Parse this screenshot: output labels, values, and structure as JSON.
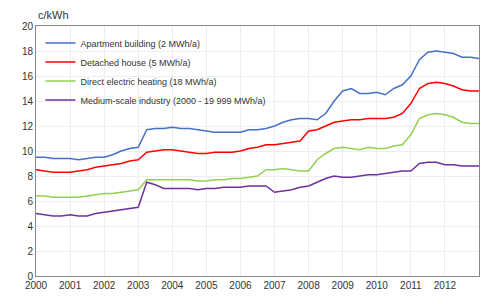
{
  "chart_data": {
    "type": "line",
    "ylabel": "c/kWh",
    "x": [
      2000.0,
      2000.25,
      2000.5,
      2000.75,
      2001.0,
      2001.25,
      2001.5,
      2001.75,
      2002.0,
      2002.25,
      2002.5,
      2002.75,
      2003.0,
      2003.25,
      2003.5,
      2003.75,
      2004.0,
      2004.25,
      2004.5,
      2004.75,
      2005.0,
      2005.25,
      2005.5,
      2005.75,
      2006.0,
      2006.25,
      2006.5,
      2006.75,
      2007.0,
      2007.25,
      2007.5,
      2007.75,
      2008.0,
      2008.25,
      2008.5,
      2008.75,
      2009.0,
      2009.25,
      2009.5,
      2009.75,
      2010.0,
      2010.25,
      2010.5,
      2010.75,
      2011.0,
      2011.25,
      2011.5,
      2011.75,
      2012.0,
      2012.25,
      2012.5,
      2012.75,
      2013.0
    ],
    "series": [
      {
        "name": "Apartment building (2 MWh/a)",
        "color": "#4472C4",
        "values": [
          9.5,
          9.5,
          9.4,
          9.4,
          9.4,
          9.3,
          9.4,
          9.5,
          9.5,
          9.7,
          10.0,
          10.2,
          10.3,
          11.7,
          11.8,
          11.8,
          11.9,
          11.8,
          11.8,
          11.7,
          11.6,
          11.5,
          11.5,
          11.5,
          11.5,
          11.7,
          11.7,
          11.8,
          12.0,
          12.3,
          12.5,
          12.6,
          12.6,
          12.5,
          13.0,
          14.0,
          14.8,
          15.0,
          14.6,
          14.6,
          14.7,
          14.5,
          15.0,
          15.3,
          16.0,
          17.3,
          17.9,
          18.0,
          17.9,
          17.8,
          17.5,
          17.5,
          17.4
        ]
      },
      {
        "name": "Detached house (5 MWh/a)",
        "color": "#FF0000",
        "values": [
          8.5,
          8.4,
          8.3,
          8.3,
          8.3,
          8.4,
          8.5,
          8.7,
          8.8,
          8.9,
          9.0,
          9.2,
          9.3,
          9.9,
          10.0,
          10.1,
          10.1,
          10.0,
          9.9,
          9.8,
          9.8,
          9.9,
          9.9,
          9.9,
          10.0,
          10.2,
          10.3,
          10.5,
          10.5,
          10.6,
          10.7,
          10.8,
          11.6,
          11.7,
          12.0,
          12.3,
          12.4,
          12.5,
          12.5,
          12.6,
          12.6,
          12.6,
          12.7,
          13.0,
          13.8,
          15.0,
          15.4,
          15.5,
          15.4,
          15.2,
          14.9,
          14.8,
          14.8
        ]
      },
      {
        "name": "Direct electric heating (18 MWh/a)",
        "color": "#92D050",
        "values": [
          6.4,
          6.4,
          6.3,
          6.3,
          6.3,
          6.3,
          6.4,
          6.5,
          6.6,
          6.6,
          6.7,
          6.8,
          6.9,
          7.7,
          7.7,
          7.7,
          7.7,
          7.7,
          7.7,
          7.6,
          7.6,
          7.7,
          7.7,
          7.8,
          7.8,
          7.9,
          8.0,
          8.5,
          8.5,
          8.6,
          8.5,
          8.4,
          8.4,
          9.3,
          9.8,
          10.2,
          10.3,
          10.2,
          10.1,
          10.3,
          10.2,
          10.2,
          10.4,
          10.5,
          11.3,
          12.6,
          12.9,
          13.0,
          12.9,
          12.7,
          12.3,
          12.2,
          12.2
        ]
      },
      {
        "name": "Medium-scale industry (2000 - 19 999 MWh/a)",
        "color": "#7030A0",
        "values": [
          5.0,
          4.9,
          4.8,
          4.8,
          4.9,
          4.8,
          4.8,
          5.0,
          5.1,
          5.2,
          5.3,
          5.4,
          5.5,
          7.5,
          7.3,
          7.0,
          7.0,
          7.0,
          7.0,
          6.9,
          7.0,
          7.0,
          7.1,
          7.1,
          7.1,
          7.2,
          7.2,
          7.2,
          6.7,
          6.8,
          6.9,
          7.1,
          7.2,
          7.5,
          7.8,
          8.0,
          7.9,
          7.9,
          8.0,
          8.1,
          8.1,
          8.2,
          8.3,
          8.4,
          8.4,
          9.0,
          9.1,
          9.1,
          8.9,
          8.9,
          8.8,
          8.8,
          8.8
        ]
      }
    ],
    "xlim": [
      2000,
      2013.0
    ],
    "xticks": [
      2000,
      2001,
      2002,
      2003,
      2004,
      2005,
      2006,
      2007,
      2008,
      2009,
      2010,
      2011,
      2012
    ],
    "ylim": [
      0,
      20
    ],
    "yticks": [
      0,
      2,
      4,
      6,
      8,
      10,
      12,
      14,
      16,
      18,
      20
    ],
    "grid": true,
    "legend": "upper left"
  }
}
